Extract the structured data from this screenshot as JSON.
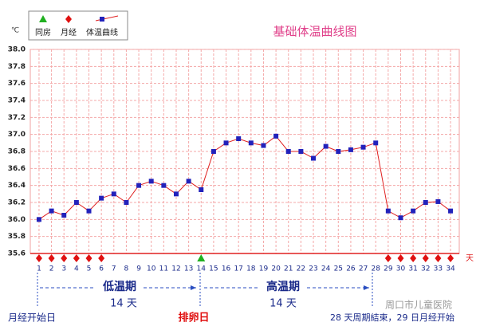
{
  "chart_data": {
    "type": "line",
    "title": "基础体温曲线图",
    "y_unit": "℃",
    "x_unit": "天",
    "x": [
      1,
      2,
      3,
      4,
      5,
      6,
      7,
      8,
      9,
      10,
      11,
      12,
      13,
      14,
      15,
      16,
      17,
      18,
      19,
      20,
      21,
      22,
      23,
      24,
      25,
      26,
      27,
      28,
      29,
      30,
      31,
      32,
      33,
      34
    ],
    "xlim": [
      0.3,
      34.7
    ],
    "xticks": [
      1,
      2,
      3,
      4,
      5,
      6,
      7,
      8,
      9,
      10,
      11,
      12,
      13,
      14,
      15,
      16,
      17,
      18,
      19,
      20,
      21,
      22,
      23,
      24,
      25,
      26,
      27,
      28,
      29,
      30,
      31,
      32,
      33,
      34
    ],
    "ylim": [
      35.6,
      38.0
    ],
    "yticks": [
      {
        "value": 35.6,
        "label": "35.6"
      },
      {
        "value": 35.8,
        "label": "35.8"
      },
      {
        "value": 36.0,
        "label": "36.0"
      },
      {
        "value": 36.2,
        "label": "36.2"
      },
      {
        "value": 36.4,
        "label": "36.4"
      },
      {
        "value": 36.6,
        "label": "36.6"
      },
      {
        "value": 36.8,
        "label": "36.8"
      },
      {
        "value": 37.0,
        "label": "37.0"
      },
      {
        "value": 37.2,
        "label": "37.2"
      },
      {
        "value": 37.4,
        "label": "37.4"
      },
      {
        "value": 37.6,
        "label": "37.6"
      },
      {
        "value": 37.8,
        "label": "37.8"
      },
      {
        "value": 38.0,
        "label": "38.0"
      }
    ],
    "grid": true,
    "series": [
      {
        "name": "体温曲线",
        "color": "#e02020",
        "marker_color": "#2222bb",
        "values": [
          36.0,
          36.1,
          36.05,
          36.2,
          36.1,
          36.25,
          36.3,
          36.2,
          36.4,
          36.45,
          36.4,
          36.3,
          36.45,
          36.35,
          36.8,
          36.9,
          36.95,
          36.9,
          36.87,
          36.98,
          36.8,
          36.8,
          36.72,
          36.86,
          36.8,
          36.82,
          36.85,
          36.9,
          36.1,
          36.02,
          36.1,
          36.2,
          36.21,
          36.1
        ]
      }
    ],
    "markers": [
      {
        "name": "同房",
        "color": "#20b020",
        "shape": "triangle",
        "days": [
          14
        ]
      },
      {
        "name": "月经",
        "color": "#e01010",
        "shape": "diamond",
        "days": [
          1,
          2,
          3,
          4,
          5,
          6,
          29,
          30,
          31,
          32,
          33,
          34
        ]
      }
    ],
    "annotations": {
      "low_phase": "低温期",
      "low_days": "14 天",
      "high_phase": "高温期",
      "high_days": "14 天",
      "period_start": "月经开始日",
      "ovulation": "排卵日",
      "cycle_end": "28 天周期結束，29 日月经开始",
      "watermark": "周口市儿童医院"
    }
  }
}
